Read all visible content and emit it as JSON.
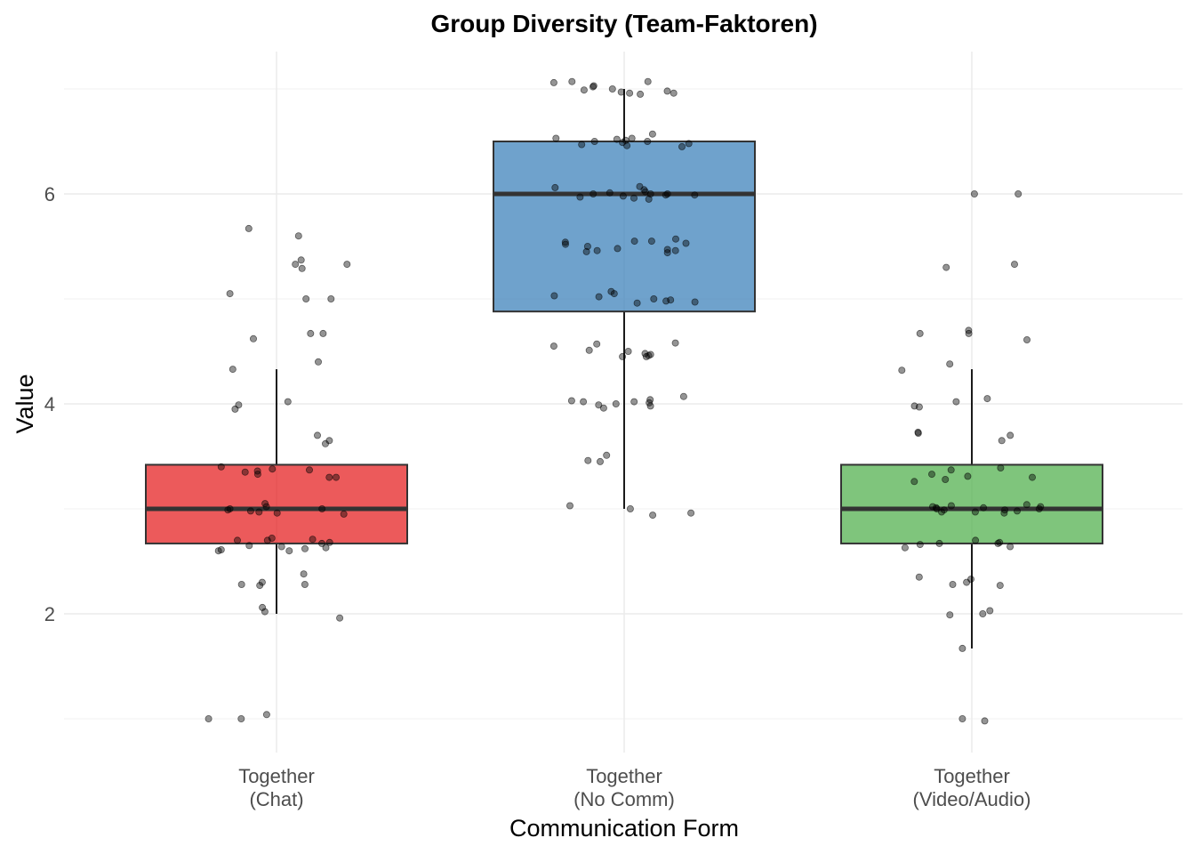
{
  "chart_data": {
    "type": "box",
    "title": "Group Diversity (Team-Faktoren)",
    "xlabel": "Communication Form",
    "ylabel": "Value",
    "ylim": [
      0.7,
      7.2
    ],
    "yticks": [
      2,
      4,
      6
    ],
    "grid": true,
    "categories": [
      {
        "label_lines": [
          "Together",
          "(Chat)"
        ],
        "color": "#e41a1c",
        "stats": {
          "min": 2.0,
          "q1": 2.67,
          "median": 3.0,
          "q3": 3.42,
          "max": 4.33
        },
        "points": [
          5.6,
          5.67,
          5.33,
          5.33,
          5.29,
          5.37,
          5.05,
          5.0,
          5.0,
          4.67,
          4.67,
          4.62,
          4.4,
          4.33,
          4.02,
          3.99,
          3.95,
          3.7,
          3.65,
          3.62,
          3.4,
          3.38,
          3.37,
          3.36,
          3.35,
          3.33,
          3.3,
          3.3,
          3.05,
          3.02,
          3.0,
          3.0,
          2.99,
          2.98,
          2.97,
          2.96,
          2.95,
          2.72,
          2.71,
          2.7,
          2.7,
          2.68,
          2.67,
          2.65,
          2.64,
          2.63,
          2.62,
          2.61,
          2.6,
          2.6,
          2.38,
          2.3,
          2.28,
          2.28,
          2.27,
          2.06,
          2.02,
          1.96,
          1.04,
          1.0,
          1.0
        ]
      },
      {
        "label_lines": [
          "Together",
          "(No Comm)"
        ],
        "color": "#377eb8",
        "stats": {
          "min": 3.0,
          "q1": 4.88,
          "median": 6.0,
          "q3": 6.5,
          "max": 7.0
        },
        "points": [
          7.07,
          7.07,
          7.06,
          7.03,
          7.02,
          7.0,
          6.99,
          6.98,
          6.97,
          6.96,
          6.96,
          6.95,
          6.57,
          6.53,
          6.53,
          6.52,
          6.51,
          6.5,
          6.5,
          6.49,
          6.48,
          6.47,
          6.46,
          6.45,
          6.07,
          6.06,
          6.04,
          6.02,
          6.01,
          6.0,
          6.0,
          6.0,
          5.99,
          5.99,
          5.98,
          5.97,
          5.96,
          5.95,
          5.57,
          5.55,
          5.55,
          5.54,
          5.53,
          5.52,
          5.5,
          5.48,
          5.47,
          5.46,
          5.46,
          5.45,
          5.44,
          5.07,
          5.05,
          5.03,
          5.02,
          5.0,
          4.99,
          4.98,
          4.97,
          4.96,
          4.58,
          4.57,
          4.55,
          4.51,
          4.5,
          4.48,
          4.47,
          4.46,
          4.45,
          4.45,
          4.07,
          4.04,
          4.03,
          4.02,
          4.02,
          4.01,
          4.0,
          3.99,
          3.98,
          3.96,
          3.51,
          3.46,
          3.45,
          3.03,
          3.0,
          2.96,
          2.94
        ]
      },
      {
        "label_lines": [
          "Together",
          "(Video/Audio)"
        ],
        "color": "#4daf4a",
        "stats": {
          "min": 1.67,
          "q1": 2.67,
          "median": 3.0,
          "q3": 3.42,
          "max": 4.33
        },
        "points": [
          6.0,
          6.0,
          5.33,
          5.3,
          4.7,
          4.67,
          4.67,
          4.61,
          4.38,
          4.32,
          4.05,
          4.02,
          3.98,
          3.97,
          3.73,
          3.72,
          3.7,
          3.65,
          3.39,
          3.37,
          3.33,
          3.31,
          3.3,
          3.28,
          3.26,
          3.04,
          3.03,
          3.02,
          3.02,
          3.01,
          3.01,
          3.0,
          3.0,
          2.99,
          2.99,
          2.98,
          2.97,
          2.97,
          2.96,
          2.7,
          2.68,
          2.67,
          2.67,
          2.66,
          2.64,
          2.63,
          2.35,
          2.33,
          2.3,
          2.28,
          2.27,
          2.03,
          2.0,
          1.99,
          1.67,
          1.0,
          0.98
        ]
      }
    ]
  }
}
